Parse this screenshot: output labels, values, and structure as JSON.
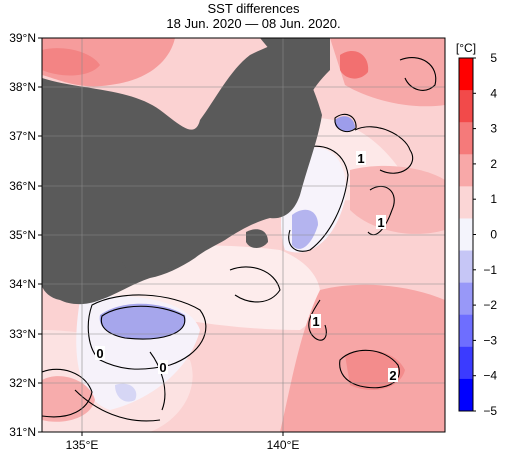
{
  "header": {
    "title": "SST differences",
    "subtitle": "18 Jun. 2020 — 08 Jun. 2020."
  },
  "lat_labels": [
    "39°N",
    "38°N",
    "37°N",
    "36°N",
    "35°N",
    "34°N",
    "33°N",
    "32°N",
    "31°N"
  ],
  "lon_labels": [
    "135°E",
    "140°E"
  ],
  "map": {
    "lat_range": [
      31,
      39
    ],
    "lon_range": [
      134,
      144
    ],
    "land_color": "#5a5a5a",
    "contour_labels": [
      "0",
      "0",
      "1",
      "1",
      "1",
      "2"
    ]
  },
  "colorbar": {
    "unit": "[°C]",
    "ticks": [
      "5",
      "4",
      "3",
      "2",
      "1",
      "0",
      "−1",
      "−2",
      "−3",
      "−4",
      "−5"
    ],
    "range": [
      -5,
      5
    ],
    "colors": [
      "#0000ff",
      "#3b3bff",
      "#6e6eff",
      "#9898f8",
      "#c6c6f6",
      "#f4f4fc",
      "#fbd6d6",
      "#f8a8a8",
      "#f57a7a",
      "#f24a4a",
      "#ff0000"
    ]
  }
}
